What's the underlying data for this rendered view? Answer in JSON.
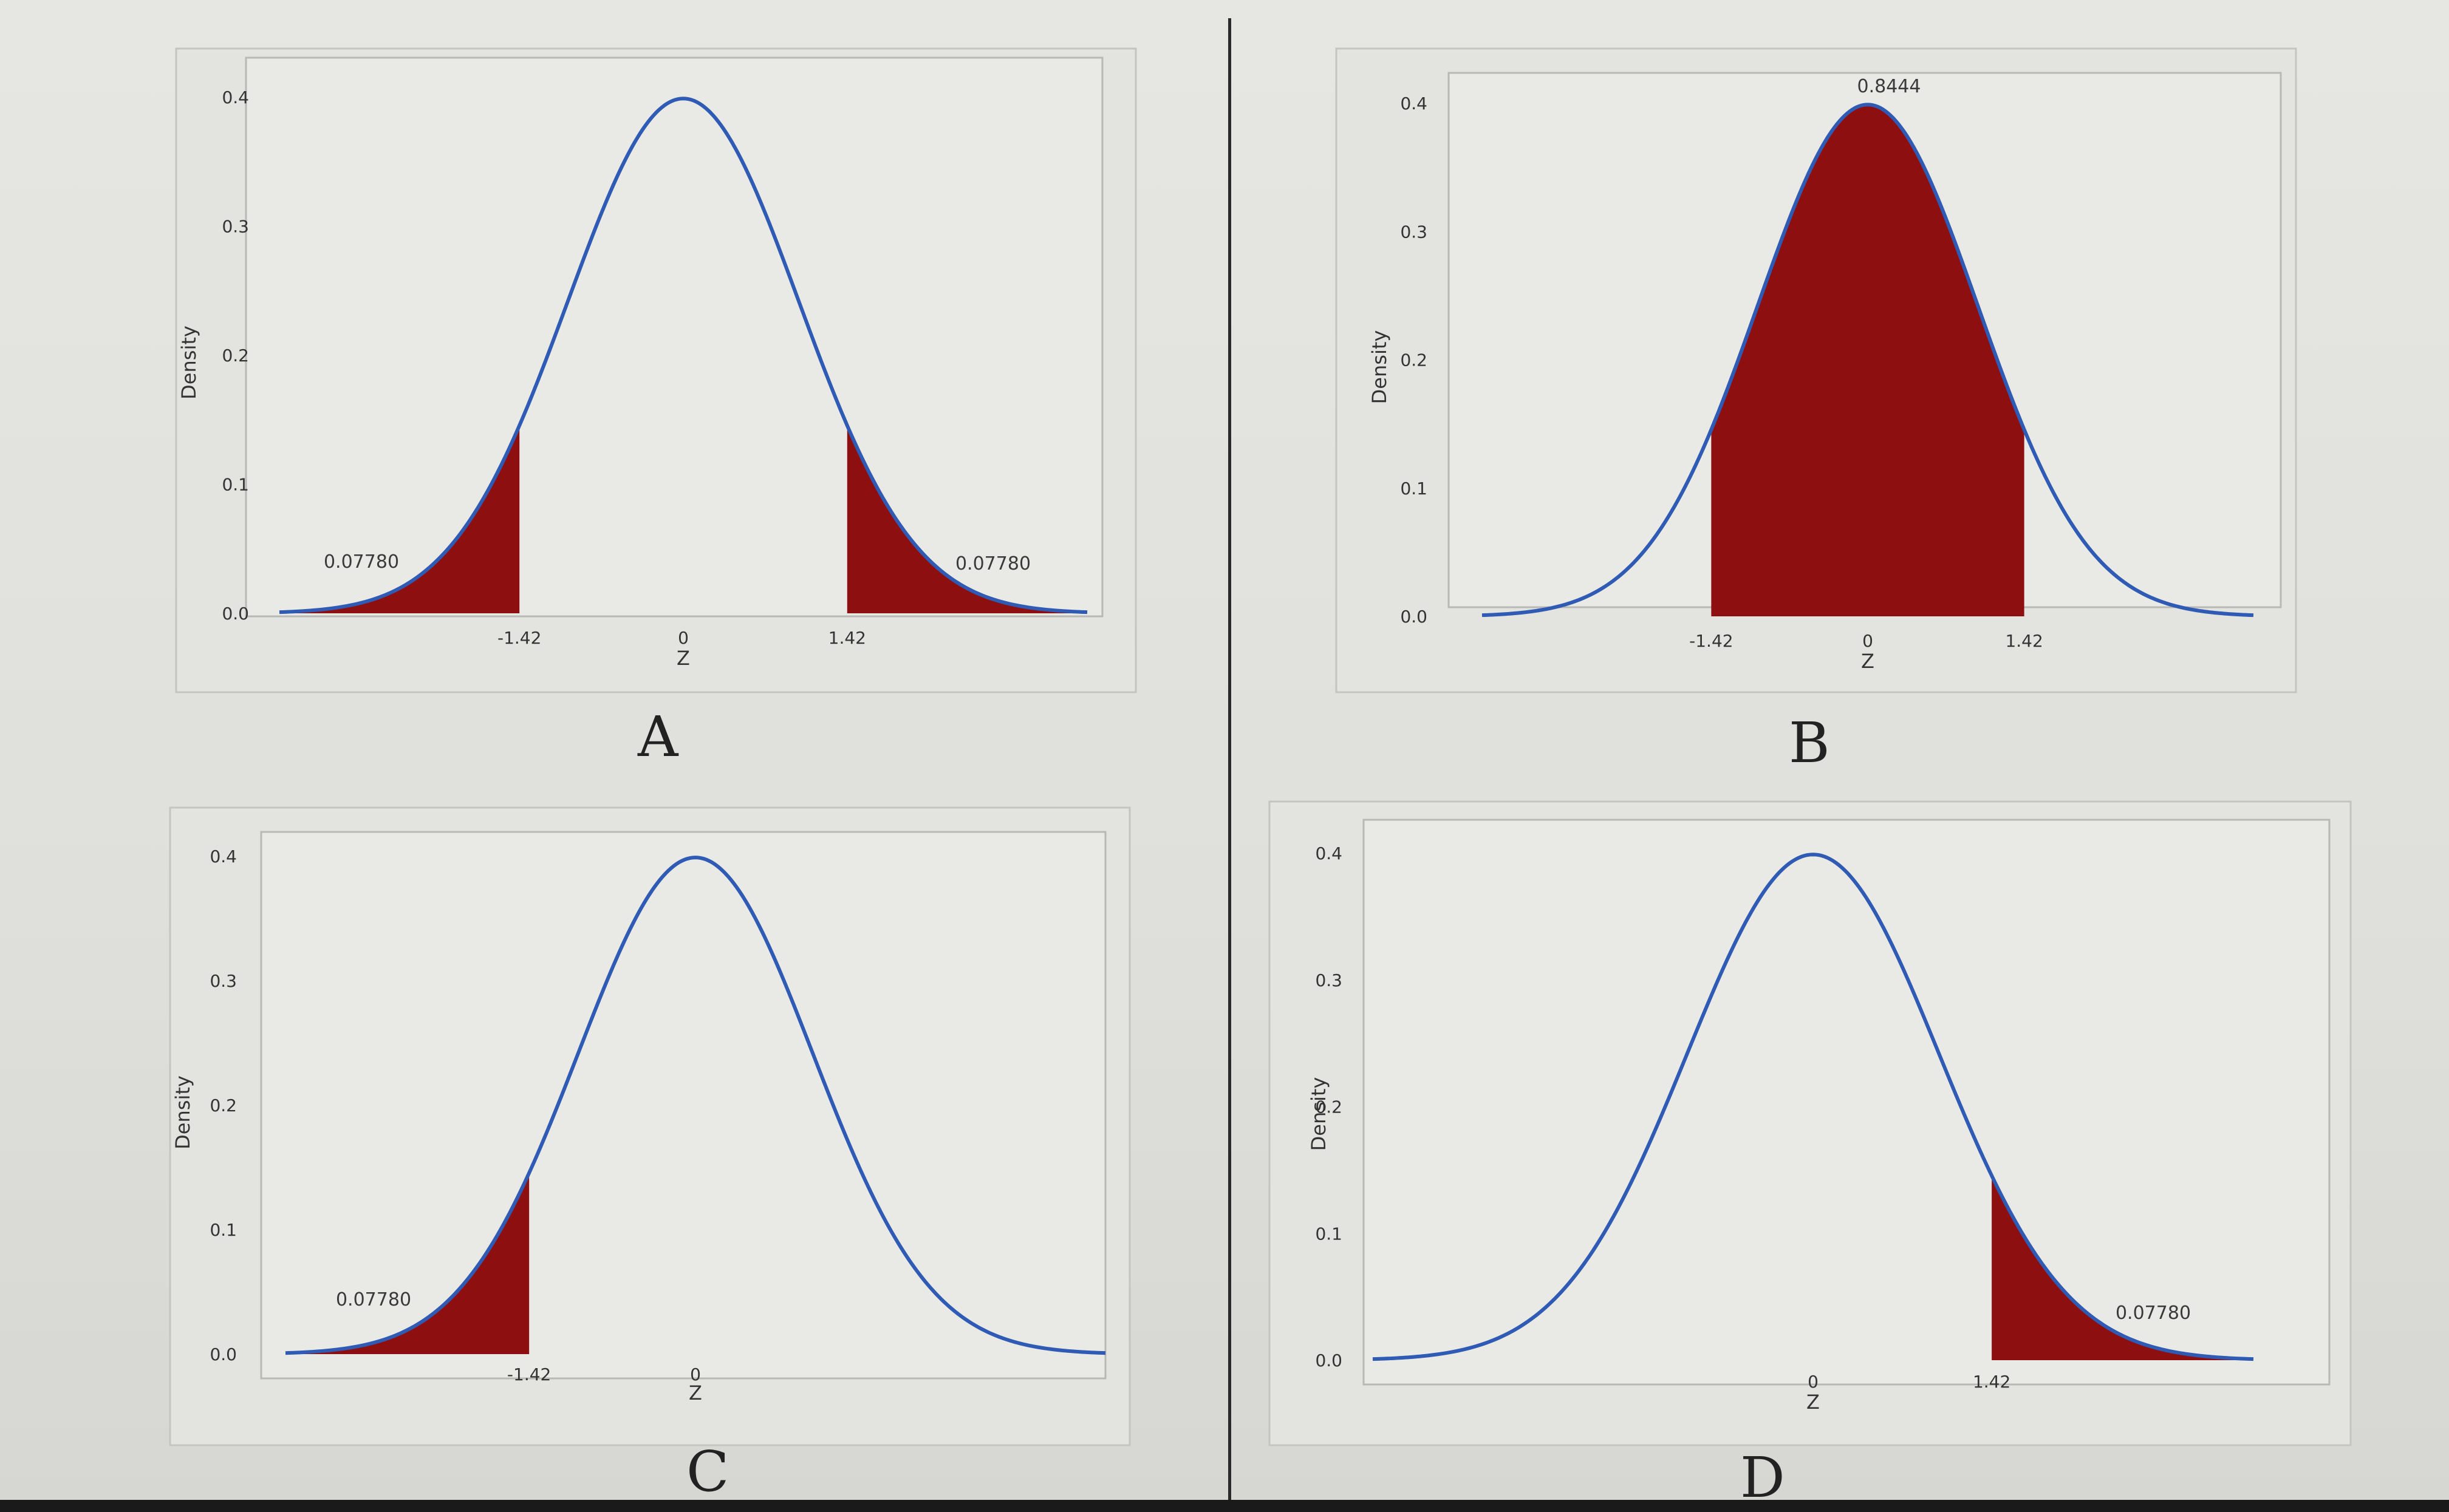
{
  "chart_data": [
    {
      "id": "A",
      "type": "area",
      "panel_label": "A",
      "xlabel": "Z",
      "ylabel": "Density",
      "xlim": [
        -3.5,
        3.5
      ],
      "ylim": [
        0,
        0.4
      ],
      "y_ticks": [
        "0.0",
        "0.1",
        "0.2",
        "0.3",
        "0.4"
      ],
      "x_ticks": [
        {
          "value": -1.42,
          "label": "-1.42"
        },
        {
          "value": 0,
          "label": "0"
        },
        {
          "value": 1.42,
          "label": "1.42"
        }
      ],
      "shaded_regions": [
        {
          "from": -3.5,
          "to": -1.42,
          "area_label": "0.07780"
        },
        {
          "from": 1.42,
          "to": 3.5,
          "area_label": "0.07780"
        }
      ]
    },
    {
      "id": "B",
      "type": "area",
      "panel_label": "B",
      "xlabel": "Z",
      "ylabel": "Density",
      "xlim": [
        -3.5,
        3.5
      ],
      "ylim": [
        0,
        0.4
      ],
      "y_ticks": [
        "0.0",
        "0.1",
        "0.2",
        "0.3",
        "0.4"
      ],
      "x_ticks": [
        {
          "value": -1.42,
          "label": "-1.42"
        },
        {
          "value": 0,
          "label": "0"
        },
        {
          "value": 1.42,
          "label": "1.42"
        }
      ],
      "shaded_regions": [
        {
          "from": -1.42,
          "to": 1.42,
          "area_label": "0.8444"
        }
      ]
    },
    {
      "id": "C",
      "type": "area",
      "panel_label": "C",
      "xlabel": "Z",
      "ylabel": "Density",
      "xlim": [
        -3.5,
        3.5
      ],
      "ylim": [
        0,
        0.4
      ],
      "y_ticks": [
        "0.0",
        "0.1",
        "0.2",
        "0.3",
        "0.4"
      ],
      "x_ticks": [
        {
          "value": -1.42,
          "label": "-1.42"
        },
        {
          "value": 0,
          "label": "0"
        }
      ],
      "shaded_regions": [
        {
          "from": -3.5,
          "to": -1.42,
          "area_label": "0.07780"
        }
      ]
    },
    {
      "id": "D",
      "type": "area",
      "panel_label": "D",
      "xlabel": "Z",
      "ylabel": "Density",
      "xlim": [
        -3.5,
        3.5
      ],
      "ylim": [
        0,
        0.4
      ],
      "y_ticks": [
        "0.0",
        "0.1",
        "0.2",
        "0.3",
        "0.4"
      ],
      "x_ticks": [
        {
          "value": 0,
          "label": "0"
        },
        {
          "value": 1.42,
          "label": "1.42"
        }
      ],
      "shaded_regions": [
        {
          "from": 1.42,
          "to": 3.5,
          "area_label": "0.07780"
        }
      ]
    }
  ],
  "colors": {
    "curve": "#2f5bb5",
    "shade": "#8e0f0f"
  }
}
